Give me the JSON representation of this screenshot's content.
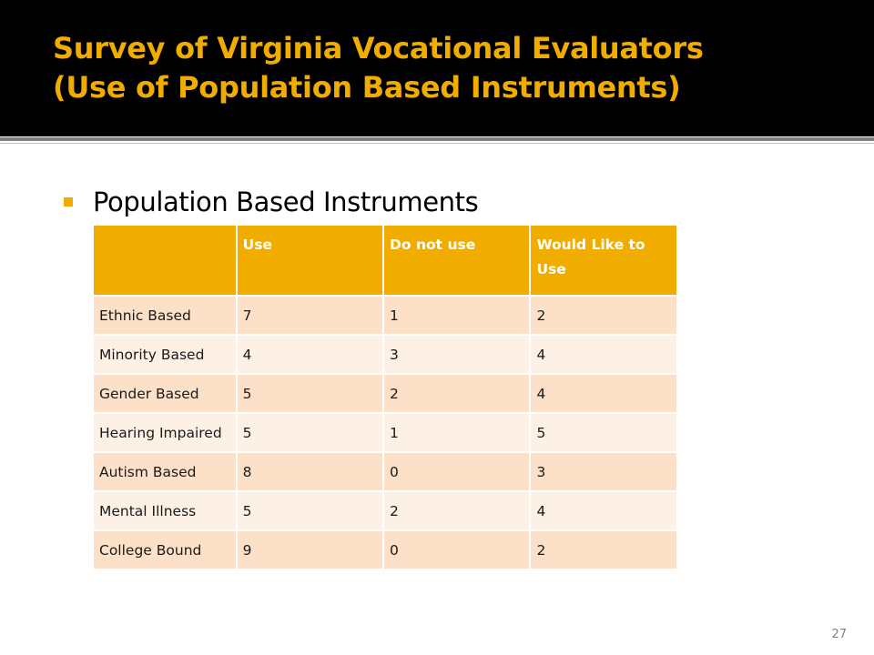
{
  "slide": {
    "title_line1": "Survey of Virginia Vocational Evaluators",
    "title_line2": "(Use of Population Based Instruments)",
    "bullet": "Population Based Instruments",
    "page_number": "27"
  },
  "table": {
    "headers": [
      "",
      "Use",
      "Do not use",
      "Would Like to Use"
    ],
    "rows": [
      [
        "Ethnic Based",
        "7",
        "1",
        "2"
      ],
      [
        "Minority Based",
        "4",
        "3",
        "4"
      ],
      [
        "Gender Based",
        "5",
        "2",
        "4"
      ],
      [
        "Hearing Impaired",
        "5",
        "1",
        "5"
      ],
      [
        "Autism Based",
        "8",
        "0",
        "3"
      ],
      [
        "Mental Illness",
        "5",
        "2",
        "4"
      ],
      [
        "College Bound",
        "9",
        "0",
        "2"
      ]
    ]
  },
  "colors": {
    "accent": "#f0ad00",
    "title_background": "#000000",
    "row_odd": "#fce0c8",
    "row_even": "#fdf0e4"
  }
}
